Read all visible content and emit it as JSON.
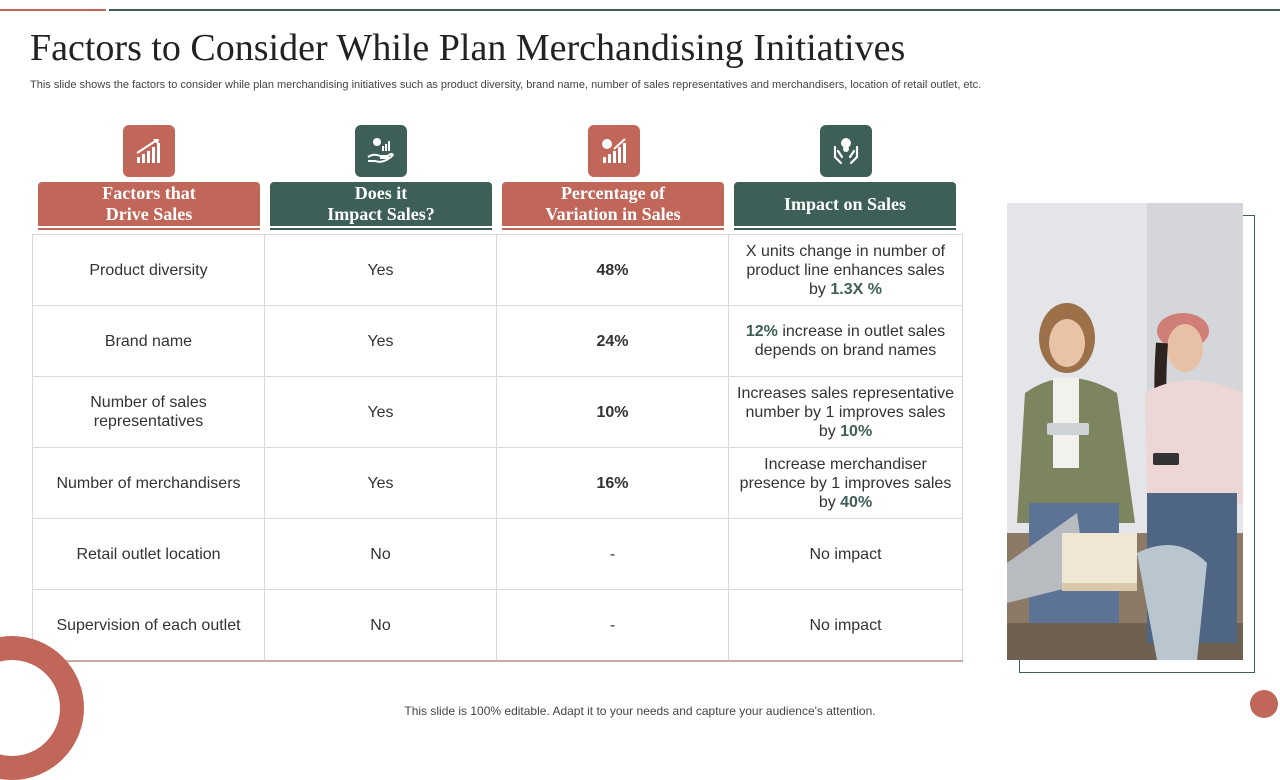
{
  "slide": {
    "title": "Factors to Consider While Plan Merchandising Initiatives",
    "subtitle": "This slide shows the factors to consider while plan merchandising initiatives such as product diversity, brand name, number of sales representatives and merchandisers, location of retail outlet, etc.",
    "footer": "This slide is 100% editable. Adapt it to your needs and capture your audience's attention."
  },
  "colors": {
    "accent_red": "#c0675a",
    "accent_green": "#3d5f57"
  },
  "columns": [
    {
      "label": "Factors that\nDrive Sales",
      "icon": "growth-chart-icon",
      "color": "red"
    },
    {
      "label": "Does it\nImpact Sales?",
      "icon": "money-hand-chart-icon",
      "color": "green"
    },
    {
      "label": "Percentage of\nVariation in Sales",
      "icon": "coin-growth-chart-icon",
      "color": "red"
    },
    {
      "label": "Impact on Sales",
      "icon": "hands-coins-icon",
      "color": "green"
    }
  ],
  "rows": [
    {
      "factor": "Product diversity",
      "impact": "Yes",
      "pct": "48%",
      "sales_pre": "X units change in number of product line enhances sales by ",
      "sales_hl": "1.3X %",
      "sales_post": ""
    },
    {
      "factor": "Brand name",
      "impact": "Yes",
      "pct": "24%",
      "sales_pre": "",
      "sales_hl": "12%",
      "sales_post": " increase in outlet sales depends on brand names"
    },
    {
      "factor": "Number of sales representatives",
      "impact": "Yes",
      "pct": "10%",
      "sales_pre": "Increases sales representative number by 1 improves sales by ",
      "sales_hl": "10%",
      "sales_post": ""
    },
    {
      "factor": "Number of merchandisers",
      "impact": "Yes",
      "pct": "16%",
      "sales_pre": "Increase merchandiser presence by 1 improves sales by ",
      "sales_hl": "40%",
      "sales_post": ""
    },
    {
      "factor": "Retail outlet location",
      "impact": "No",
      "pct": "-",
      "sales_pre": "No impact",
      "sales_hl": "",
      "sales_post": ""
    },
    {
      "factor": "Supervision of each outlet",
      "impact": "No",
      "pct": "-",
      "sales_pre": "No impact",
      "sales_hl": "",
      "sales_post": ""
    }
  ]
}
